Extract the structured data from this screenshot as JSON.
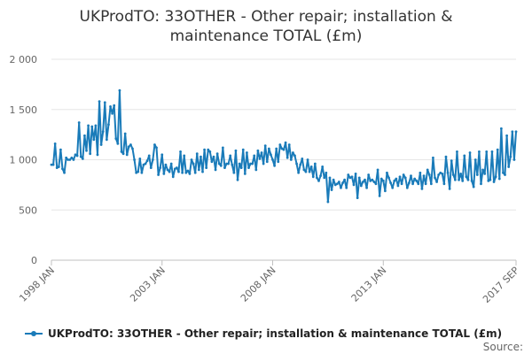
{
  "chart_data": {
    "type": "line",
    "title_line1": "UKProdTO: 33OTHER - Other repair; installation &",
    "title_line2": "maintenance TOTAL (£m)",
    "xlabel": "",
    "ylabel": "",
    "ylim": [
      0,
      2000
    ],
    "yticks": [
      0,
      500,
      1000,
      1500,
      2000
    ],
    "ytick_labels": [
      "0",
      "500",
      "1 000",
      "1 500",
      "2 000"
    ],
    "xtick_labels": [
      "1998 JAN",
      "2003 JAN",
      "2008 JAN",
      "2013 JAN",
      "2017 SEP"
    ],
    "x_start": "1998 JAN",
    "x_end": "2017 SEP",
    "legend_position": "bottom",
    "source_label": "Source:",
    "grid": "horizontal",
    "color": "#1a7bb9",
    "series": [
      {
        "name": "UKProdTO: 33OTHER - Other repair; installation & maintenance TOTAL (£m)",
        "values": [
          950,
          950,
          1160,
          920,
          930,
          1100,
          910,
          870,
          1020,
          1000,
          1000,
          1020,
          1000,
          1050,
          1040,
          1370,
          1030,
          1010,
          1240,
          1090,
          1340,
          1060,
          1330,
          1200,
          1340,
          1050,
          1580,
          1150,
          1280,
          1570,
          1200,
          1350,
          1530,
          1460,
          1540,
          1210,
          1160,
          1690,
          1080,
          1060,
          1260,
          1050,
          1130,
          1150,
          1110,
          1000,
          870,
          880,
          1010,
          870,
          950,
          960,
          990,
          1040,
          920,
          1000,
          1150,
          1120,
          850,
          920,
          1050,
          860,
          950,
          900,
          880,
          960,
          830,
          910,
          920,
          880,
          1080,
          870,
          1040,
          870,
          890,
          860,
          1000,
          960,
          870,
          1060,
          900,
          1030,
          880,
          1100,
          920,
          1100,
          1080,
          980,
          1030,
          900,
          1060,
          960,
          940,
          1120,
          920,
          960,
          960,
          1040,
          950,
          870,
          1090,
          800,
          960,
          920,
          1100,
          860,
          1070,
          920,
          960,
          960,
          1040,
          900,
          1090,
          1010,
          1070,
          960,
          1140,
          980,
          1110,
          1050,
          1000,
          940,
          1110,
          980,
          1150,
          1110,
          1100,
          1170,
          1020,
          1150,
          1000,
          1070,
          1040,
          960,
          870,
          950,
          1010,
          900,
          880,
          1000,
          880,
          930,
          830,
          960,
          820,
          790,
          840,
          930,
          820,
          870,
          580,
          820,
          700,
          800,
          750,
          760,
          780,
          720,
          770,
          800,
          720,
          850,
          820,
          830,
          750,
          860,
          620,
          820,
          740,
          780,
          800,
          720,
          850,
          790,
          800,
          780,
          760,
          900,
          640,
          810,
          790,
          690,
          870,
          820,
          770,
          720,
          790,
          810,
          740,
          830,
          760,
          850,
          820,
          720,
          770,
          840,
          760,
          810,
          790,
          760,
          870,
          710,
          840,
          760,
          900,
          850,
          760,
          1020,
          820,
          780,
          850,
          870,
          860,
          760,
          1030,
          870,
          710,
          990,
          850,
          800,
          1080,
          800,
          860,
          790,
          1040,
          830,
          800,
          1070,
          790,
          730,
          1000,
          850,
          1080,
          760,
          900,
          860,
          1080,
          790,
          800,
          1080,
          780,
          830,
          1100,
          810,
          1310,
          870,
          850,
          1240,
          930,
          1030,
          1280,
          1000,
          1280
        ]
      }
    ]
  }
}
